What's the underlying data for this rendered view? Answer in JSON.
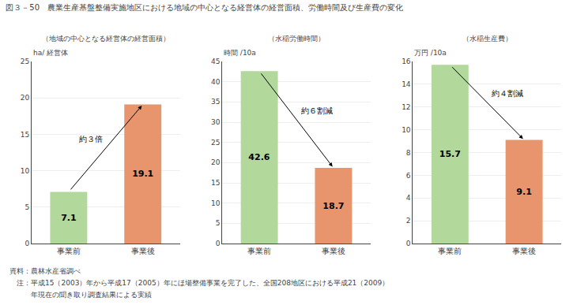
{
  "title": "図３－50　農業生産基盤整備実施地区における地域の中心となる経営体の経営面積、労働時間及び生産費の変化",
  "notes": [
    "資料：農林水産省調べ",
    "　注：平成15（2003）年から平成17（2005）年にほ場整備事業を完了した、全国208地区における平成21（2009）",
    "　　　年現在の聞き取り調査結果による実績"
  ],
  "chart_data": [
    {
      "type": "bar",
      "subtitle": "（地域の中心となる経営体の経営面積）",
      "ylabel": "ha/ 経営体",
      "categories": [
        "事業前",
        "事業後"
      ],
      "values": [
        7.1,
        19.1
      ],
      "colors": [
        "#b2d89b",
        "#e8956e"
      ],
      "ylim": [
        0,
        25
      ],
      "yticks": [
        0,
        5,
        10,
        15,
        20,
        25
      ],
      "data_labels": true,
      "annotation": "約３倍"
    },
    {
      "type": "bar",
      "subtitle": "（水稲労働時間）",
      "ylabel": "時間 /10a",
      "categories": [
        "事業前",
        "事業後"
      ],
      "values": [
        42.6,
        18.7
      ],
      "colors": [
        "#b2d89b",
        "#e8956e"
      ],
      "ylim": [
        0,
        45
      ],
      "yticks": [
        0,
        5,
        10,
        15,
        20,
        25,
        30,
        35,
        40,
        45
      ],
      "data_labels": true,
      "annotation": "約６割減"
    },
    {
      "type": "bar",
      "subtitle": "（水稲生産費）",
      "ylabel": "万円 /10a",
      "categories": [
        "事業前",
        "事業後"
      ],
      "values": [
        15.7,
        9.1
      ],
      "colors": [
        "#b2d89b",
        "#e8956e"
      ],
      "ylim": [
        0,
        16
      ],
      "yticks": [
        0,
        2,
        4,
        6,
        8,
        10,
        12,
        14,
        16
      ],
      "data_labels": true,
      "annotation": "約４割減"
    }
  ]
}
